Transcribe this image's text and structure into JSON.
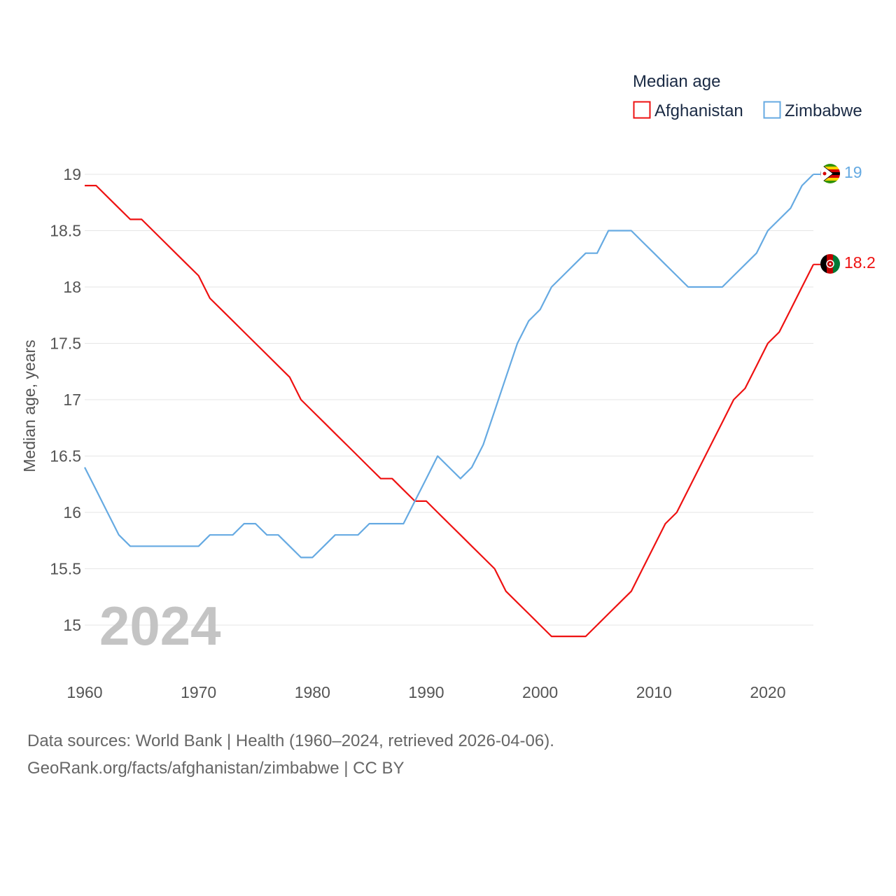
{
  "colors": {
    "afghanistan": "#ee1111",
    "zimbabwe": "#66aae2",
    "grid": "#e6e6e6",
    "text": "#555555",
    "watermark": "#c4c4c4"
  },
  "legend": {
    "title": "Median age",
    "items": [
      "Afghanistan",
      "Zimbabwe"
    ]
  },
  "year_label": "2024",
  "end_labels": {
    "afghanistan": "18.2",
    "zimbabwe": "19"
  },
  "flag_icons": {
    "afghanistan": "afghanistan-flag-icon",
    "zimbabwe": "zimbabwe-flag-icon"
  },
  "source": {
    "line1": "Data sources: World Bank | Health (1960–2024, retrieved 2026-04-06).",
    "line2": "GeoRank.org/facts/afghanistan/zimbabwe | CC BY"
  },
  "chart_data": {
    "type": "line",
    "title": "Median age",
    "xlabel": "",
    "ylabel": "Median age, years",
    "xlim": [
      1960,
      2024
    ],
    "ylim": [
      14.5,
      19.2
    ],
    "x_ticks": [
      1960,
      1970,
      1980,
      1990,
      2000,
      2010,
      2020
    ],
    "y_ticks": [
      15,
      15.5,
      16,
      16.5,
      17,
      17.5,
      18,
      18.5,
      19
    ],
    "x": [
      1960,
      1961,
      1962,
      1963,
      1964,
      1965,
      1966,
      1967,
      1968,
      1969,
      1970,
      1971,
      1972,
      1973,
      1974,
      1975,
      1976,
      1977,
      1978,
      1979,
      1980,
      1981,
      1982,
      1983,
      1984,
      1985,
      1986,
      1987,
      1988,
      1989,
      1990,
      1991,
      1992,
      1993,
      1994,
      1995,
      1996,
      1997,
      1998,
      1999,
      2000,
      2001,
      2002,
      2003,
      2004,
      2005,
      2006,
      2007,
      2008,
      2009,
      2010,
      2011,
      2012,
      2013,
      2014,
      2015,
      2016,
      2017,
      2018,
      2019,
      2020,
      2021,
      2022,
      2023,
      2024
    ],
    "series": [
      {
        "name": "Afghanistan",
        "values": [
          18.9,
          18.9,
          18.8,
          18.7,
          18.6,
          18.6,
          18.5,
          18.4,
          18.3,
          18.2,
          18.1,
          17.9,
          17.8,
          17.7,
          17.6,
          17.5,
          17.4,
          17.3,
          17.2,
          17.0,
          16.9,
          16.8,
          16.7,
          16.6,
          16.5,
          16.4,
          16.3,
          16.3,
          16.2,
          16.1,
          16.1,
          16.0,
          15.9,
          15.8,
          15.7,
          15.6,
          15.5,
          15.3,
          15.2,
          15.1,
          15.0,
          14.9,
          14.9,
          14.9,
          14.9,
          15.0,
          15.1,
          15.2,
          15.3,
          15.5,
          15.7,
          15.9,
          16.0,
          16.2,
          16.4,
          16.6,
          16.8,
          17.0,
          17.1,
          17.3,
          17.5,
          17.6,
          17.8,
          18.0,
          18.2
        ]
      },
      {
        "name": "Zimbabwe",
        "values": [
          16.4,
          16.2,
          16.0,
          15.8,
          15.7,
          15.7,
          15.7,
          15.7,
          15.7,
          15.7,
          15.7,
          15.8,
          15.8,
          15.8,
          15.9,
          15.9,
          15.8,
          15.8,
          15.7,
          15.6,
          15.6,
          15.7,
          15.8,
          15.8,
          15.8,
          15.9,
          15.9,
          15.9,
          15.9,
          16.1,
          16.3,
          16.5,
          16.4,
          16.3,
          16.4,
          16.6,
          16.9,
          17.2,
          17.5,
          17.7,
          17.8,
          18.0,
          18.1,
          18.2,
          18.3,
          18.3,
          18.5,
          18.5,
          18.5,
          18.4,
          18.3,
          18.2,
          18.1,
          18.0,
          18.0,
          18.0,
          18.0,
          18.1,
          18.2,
          18.3,
          18.5,
          18.6,
          18.7,
          18.9,
          19.0
        ]
      }
    ],
    "legend_position": "top-right"
  }
}
